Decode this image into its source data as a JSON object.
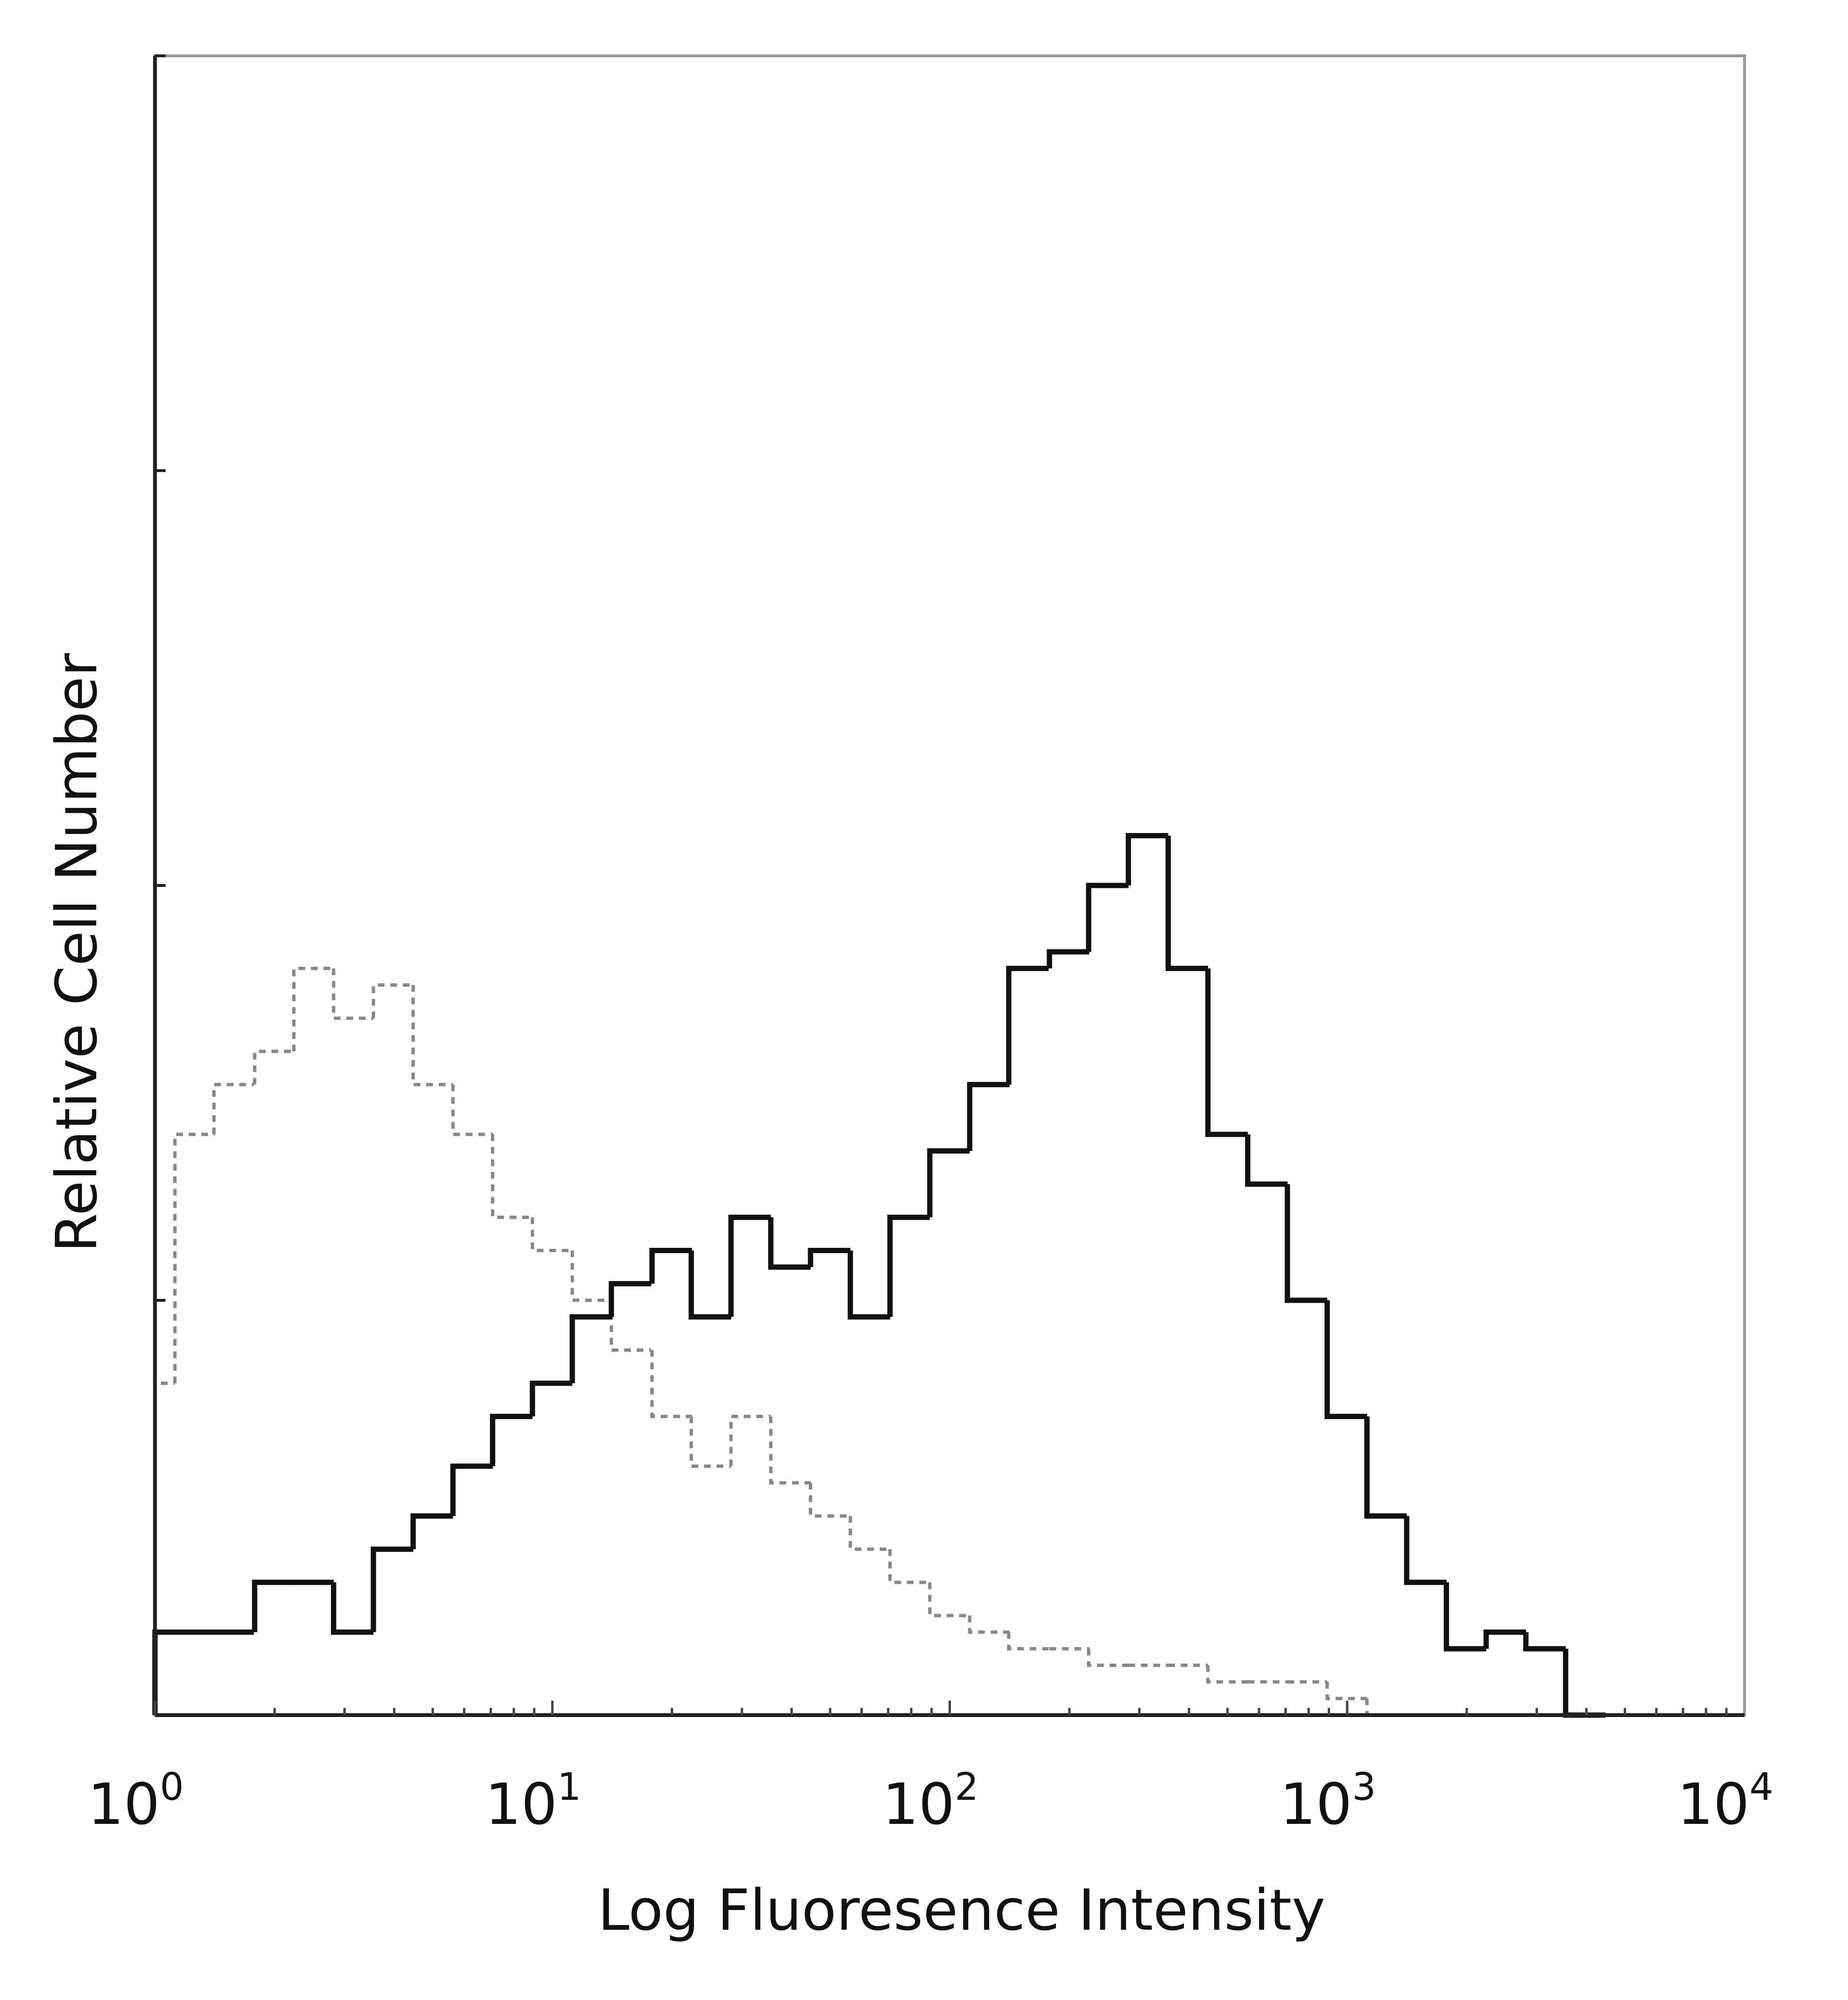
{
  "chart_data": {
    "type": "histogram",
    "xlabel": "Log Fluoresence Intensity",
    "ylabel": "Relative Cell Number",
    "x_scale": "log",
    "xlim": [
      1,
      10000
    ],
    "ylim": [
      0,
      100
    ],
    "grid": false,
    "legend": "none",
    "x_tick_labels": [
      {
        "base": "10",
        "exp": "0",
        "value": 1
      },
      {
        "base": "10",
        "exp": "1",
        "value": 10
      },
      {
        "base": "10",
        "exp": "2",
        "value": 100
      },
      {
        "base": "10",
        "exp": "3",
        "value": 1000
      },
      {
        "base": "10",
        "exp": "4",
        "value": 10000
      }
    ],
    "y_ticks": [
      0,
      25,
      50,
      75,
      100
    ],
    "x": [
      1,
      1.26,
      1.58,
      2.0,
      2.51,
      3.16,
      3.98,
      5.01,
      6.31,
      7.94,
      10,
      12.6,
      15.8,
      20,
      25.1,
      31.6,
      39.8,
      50.1,
      63.1,
      79.4,
      100,
      126,
      158,
      200,
      251,
      316,
      398,
      501,
      631,
      794,
      1000,
      1259,
      1585,
      1995,
      2512,
      3162,
      3981
    ],
    "series": [
      {
        "style": "dotted",
        "color": "#888888",
        "values": [
          20,
          35,
          38,
          40,
          45,
          42,
          44,
          38,
          35,
          30,
          28,
          25,
          22,
          18,
          15,
          18,
          14,
          12,
          10,
          8,
          6,
          5,
          4,
          4,
          3,
          3,
          3,
          2,
          2,
          2,
          1,
          0,
          0,
          0,
          0,
          0,
          0
        ]
      },
      {
        "style": "solid",
        "color": "#111111",
        "values": [
          5,
          5,
          5,
          8,
          8,
          5,
          10,
          12,
          15,
          18,
          20,
          24,
          26,
          28,
          24,
          30,
          27,
          28,
          24,
          30,
          34,
          38,
          45,
          46,
          50,
          53,
          45,
          35,
          32,
          25,
          18,
          12,
          8,
          4,
          5,
          4,
          0
        ]
      }
    ]
  }
}
